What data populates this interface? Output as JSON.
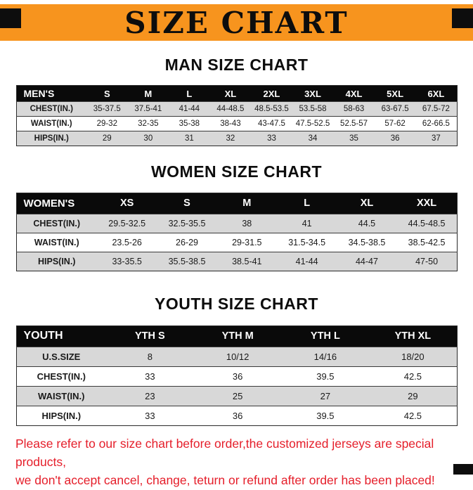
{
  "title": "SIZE CHART",
  "sections": [
    {
      "heading": "MAN SIZE CHART",
      "table": {
        "header": [
          "MEN'S",
          "S",
          "M",
          "L",
          "XL",
          "2XL",
          "3XL",
          "4XL",
          "5XL",
          "6XL"
        ],
        "rows": [
          [
            "CHEST(IN.)",
            "35-37.5",
            "37.5-41",
            "41-44",
            "44-48.5",
            "48.5-53.5",
            "53.5-58",
            "58-63",
            "63-67.5",
            "67.5-72"
          ],
          [
            "WAIST(IN.)",
            "29-32",
            "32-35",
            "35-38",
            "38-43",
            "43-47.5",
            "47.5-52.5",
            "52.5-57",
            "57-62",
            "62-66.5"
          ],
          [
            "HIPS(IN.)",
            "29",
            "30",
            "31",
            "32",
            "33",
            "34",
            "35",
            "36",
            "37"
          ]
        ]
      }
    },
    {
      "heading": "WOMEN SIZE CHART",
      "table": {
        "header": [
          "WOMEN'S",
          "XS",
          "S",
          "M",
          "L",
          "XL",
          "XXL"
        ],
        "rows": [
          [
            "CHEST(IN.)",
            "29.5-32.5",
            "32.5-35.5",
            "38",
            "41",
            "44.5",
            "44.5-48.5"
          ],
          [
            "WAIST(IN.)",
            "23.5-26",
            "26-29",
            "29-31.5",
            "31.5-34.5",
            "34.5-38.5",
            "38.5-42.5"
          ],
          [
            "HIPS(IN.)",
            "33-35.5",
            "35.5-38.5",
            "38.5-41",
            "41-44",
            "44-47",
            "47-50"
          ]
        ]
      }
    },
    {
      "heading": "YOUTH SIZE CHART",
      "table": {
        "header": [
          "YOUTH",
          "YTH S",
          "YTH M",
          "YTH L",
          "YTH XL"
        ],
        "rows": [
          [
            "U.S.SIZE",
            "8",
            "10/12",
            "14/16",
            "18/20"
          ],
          [
            "CHEST(IN.)",
            "33",
            "36",
            "39.5",
            "42.5"
          ],
          [
            "WAIST(IN.)",
            "23",
            "25",
            "27",
            "29"
          ],
          [
            "HIPS(IN.)",
            "33",
            "36",
            "39.5",
            "42.5"
          ]
        ]
      }
    }
  ],
  "footer": {
    "line1": "Please refer to our size chart before order,the customized jerseys are special products,",
    "line2": "we don't accept cancel, change, teturn or refund after order has been placed!"
  },
  "colors": {
    "banner_bg": "#F7941E",
    "banner_text": "#0D0D0D",
    "table_header_bg": "#0A0A0A",
    "table_header_text": "#FFFFFF",
    "row_stripe": "#D8D8D8",
    "footer_text": "#E51E2A",
    "corner_marks": "#0D0D0D"
  }
}
